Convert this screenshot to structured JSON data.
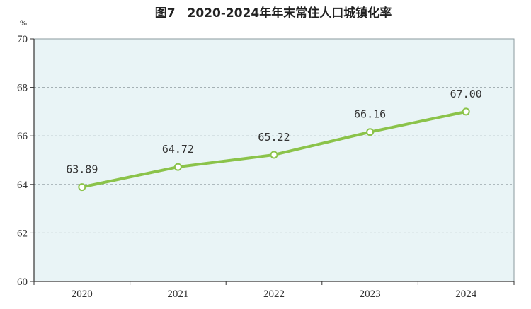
{
  "chart_data": {
    "type": "line",
    "title": "图7　2020-2024年年末常住人口城镇化率",
    "unit_label": "%",
    "categories": [
      "2020",
      "2021",
      "2022",
      "2023",
      "2024"
    ],
    "series": [
      {
        "values": [
          63.89,
          64.72,
          65.22,
          66.16,
          67.0
        ],
        "data_labels": [
          "63.89",
          "64.72",
          "65.22",
          "66.16",
          "67.00"
        ]
      }
    ],
    "ylim": [
      60,
      70
    ],
    "yticks": [
      "60",
      "62",
      "64",
      "66",
      "68",
      "70"
    ],
    "grid": "horizontal dashed",
    "colors": {
      "plot_background": "#e9f4f6",
      "line": "#8bc34a",
      "marker_fill": "#ffffff",
      "grid": "#9aa7ab",
      "axis": "#333333"
    }
  }
}
